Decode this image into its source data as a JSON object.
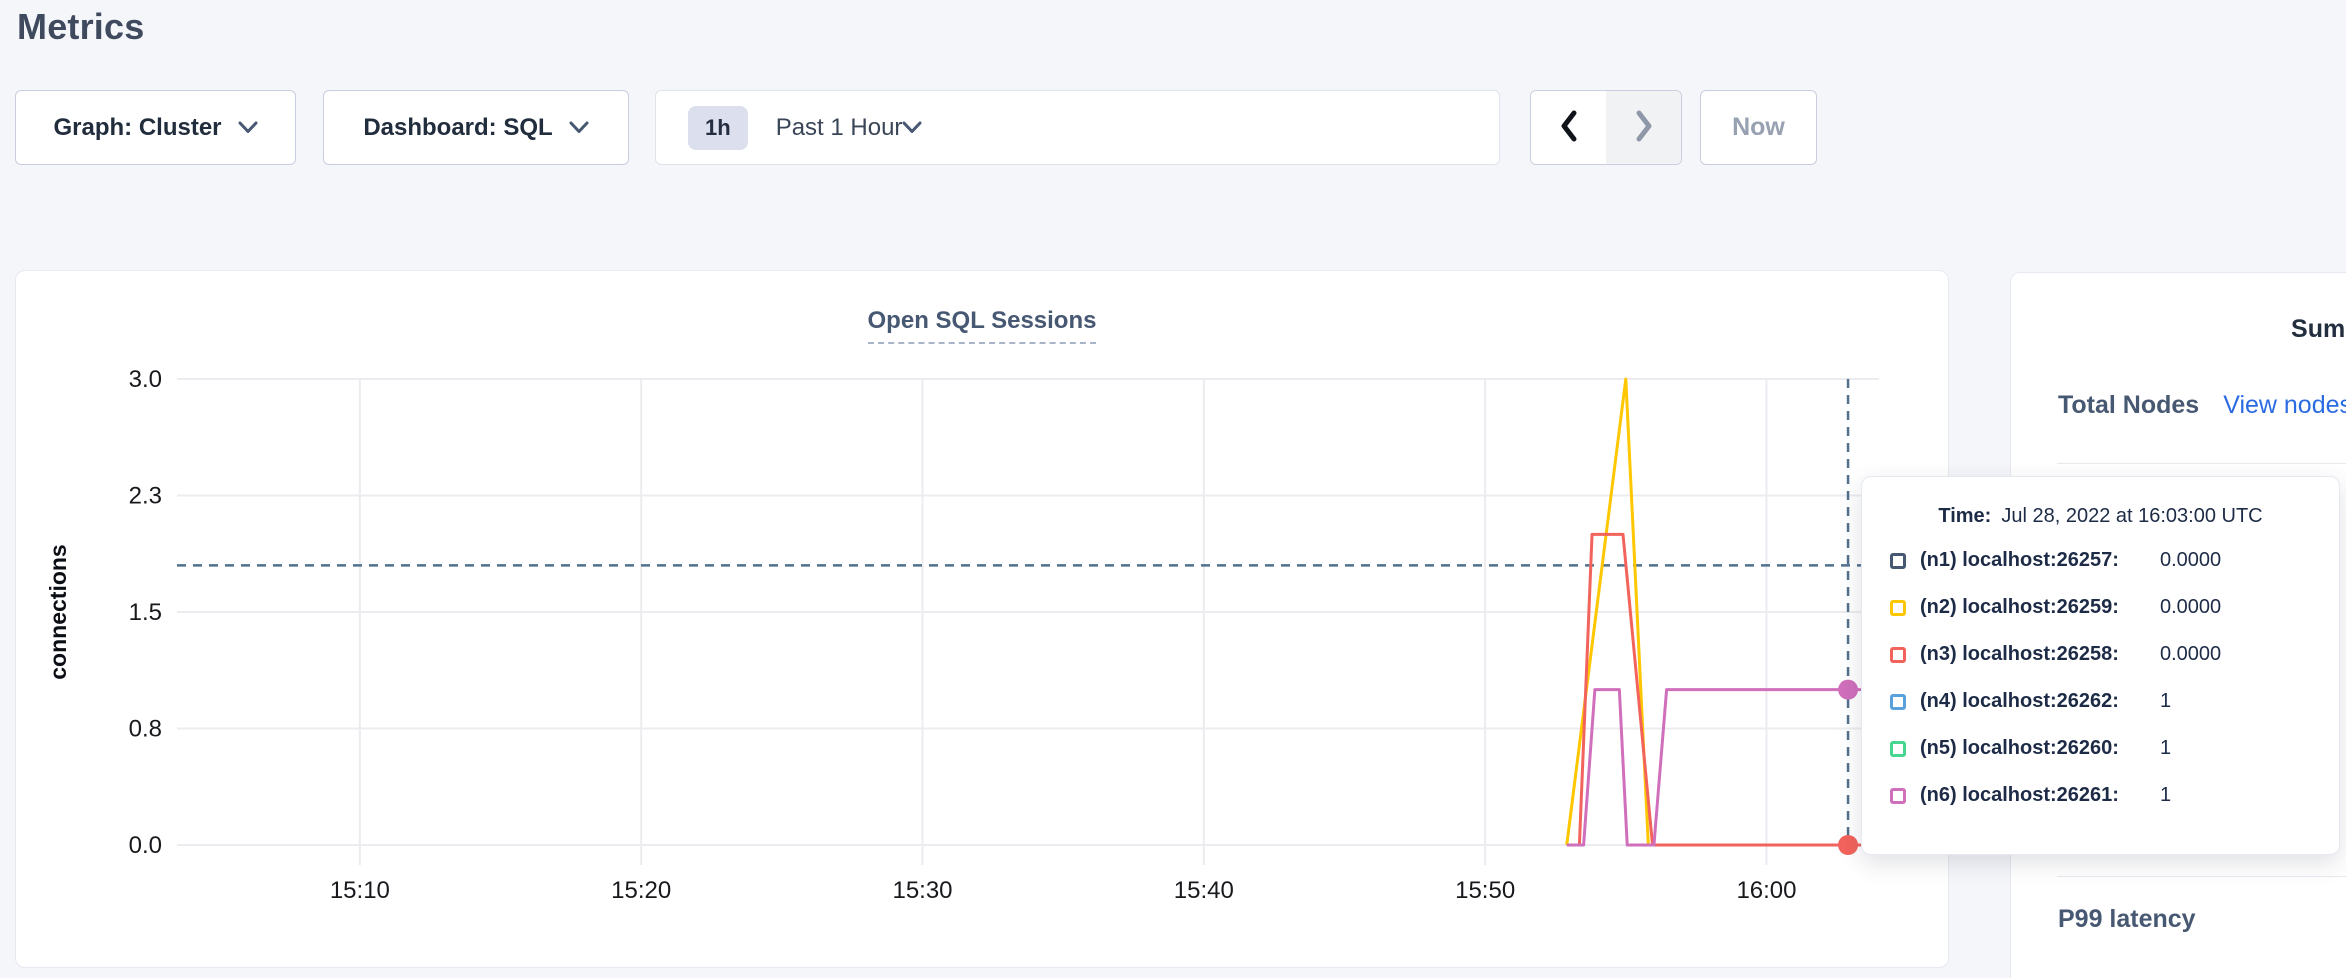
{
  "page": {
    "title": "Metrics"
  },
  "toolbar": {
    "graph_dropdown": {
      "label": "Graph: Cluster"
    },
    "dashboard_dropdown": {
      "label": "Dashboard: SQL"
    },
    "time_range": {
      "badge": "1h",
      "label": "Past 1 Hour"
    },
    "now_label": "Now"
  },
  "icons": {
    "dropdown_arrow": "chevron-down",
    "prev": "chevron-left",
    "next": "chevron-right"
  },
  "colors": {
    "background": "#f5f6fa",
    "grid": "#ececf0",
    "crosshair": "#51718e",
    "link": "#2b6be2",
    "accent_slate": "#475872"
  },
  "tooltip": {
    "time_prefix": "Time:"
  },
  "sidebar": {
    "summary_title": "Summary",
    "total_nodes_label": "Total Nodes",
    "view_nodes_link": "View nodes",
    "p99_label": "P99 latency"
  },
  "chart_data": {
    "type": "line",
    "title": "Open SQL Sessions",
    "ylabel": "connections",
    "ylim": [
      0,
      3
    ],
    "x_domain_minutes_after_1500": [
      3.5,
      64
    ],
    "y_ticks": [
      {
        "value": 0,
        "label": "0.0"
      },
      {
        "value": 0.75,
        "label": "0.8"
      },
      {
        "value": 1.5,
        "label": "1.5"
      },
      {
        "value": 2.25,
        "label": "2.3"
      },
      {
        "value": 3,
        "label": "3.0"
      }
    ],
    "x_ticks": [
      {
        "minute": 10,
        "label": "15:10"
      },
      {
        "minute": 20,
        "label": "15:20"
      },
      {
        "minute": 30,
        "label": "15:30"
      },
      {
        "minute": 40,
        "label": "15:40"
      },
      {
        "minute": 50,
        "label": "15:50"
      },
      {
        "minute": 60,
        "label": "16:00"
      }
    ],
    "grid": true,
    "legend_position": "tooltip-overlay",
    "series": [
      {
        "id": "n1",
        "label": "(n1) localhost:26257:",
        "color": "#475872",
        "cursor_value": "0.0000",
        "points": []
      },
      {
        "id": "n2",
        "label": "(n2) localhost:26259:",
        "color": "#fec700",
        "cursor_value": "0.0000",
        "points": [
          [
            52.9,
            0
          ],
          [
            55.0,
            3
          ],
          [
            55.8,
            0
          ],
          [
            64,
            0
          ]
        ]
      },
      {
        "id": "n3",
        "label": "(n3) localhost:26258:",
        "color": "#f2635c",
        "cursor_value": "0.0000",
        "points": [
          [
            53.35,
            0
          ],
          [
            53.8,
            2
          ],
          [
            54.9,
            2
          ],
          [
            55.95,
            0
          ],
          [
            64,
            0
          ]
        ]
      },
      {
        "id": "n4",
        "label": "(n4) localhost:26262:",
        "color": "#59a1dc",
        "cursor_value": "1",
        "points": []
      },
      {
        "id": "n5",
        "label": "(n5) localhost:26260:",
        "color": "#45d68f",
        "cursor_value": "1",
        "points": []
      },
      {
        "id": "n6",
        "label": "(n6) localhost:26261:",
        "color": "#d06fbc",
        "cursor_value": "1",
        "points": [
          [
            52.9,
            0
          ],
          [
            53.5,
            0
          ],
          [
            53.9,
            1
          ],
          [
            54.77,
            1
          ],
          [
            55.05,
            0
          ],
          [
            56.0,
            0
          ],
          [
            56.45,
            1
          ],
          [
            64,
            1
          ]
        ]
      }
    ],
    "crosshair": {
      "x_minute": 62.9,
      "y_value": 1.8,
      "time_label": "Jul 28, 2022 at 16:03:00 UTC",
      "dots": [
        {
          "series": "n6",
          "value": 1
        },
        {
          "series": "n3",
          "value": 0
        }
      ]
    }
  }
}
